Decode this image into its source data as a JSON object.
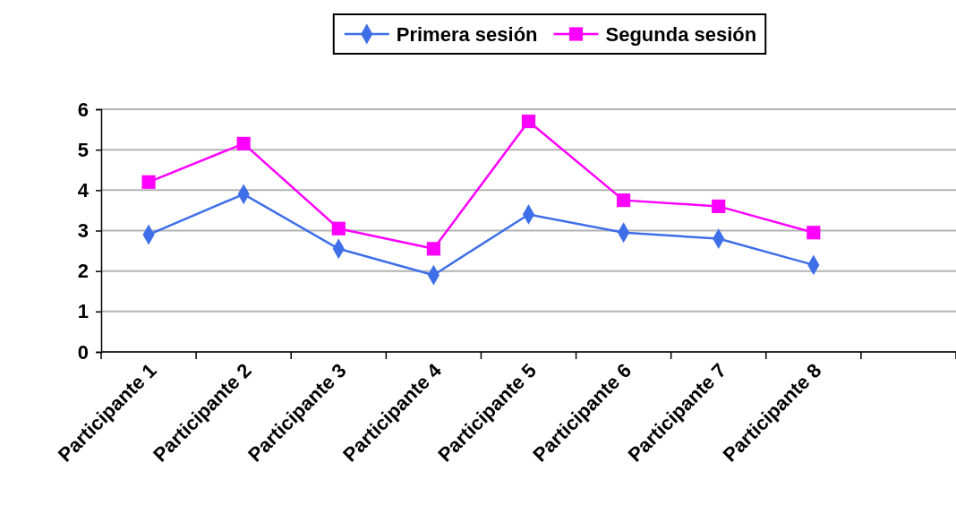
{
  "chart_data": {
    "type": "line",
    "categories": [
      "Participante 1",
      "Participante 2",
      "Participante 3",
      "Participante 4",
      "Participante 5",
      "Participante 6",
      "Participante 7",
      "Participante 8",
      null
    ],
    "series": [
      {
        "name": "Primera sesión",
        "color": "#3f6fe8",
        "marker": "diamond",
        "values": [
          2.9,
          3.9,
          2.55,
          1.9,
          3.4,
          2.95,
          2.8,
          2.15,
          null
        ]
      },
      {
        "name": "Segunda sesión",
        "color": "#ff00ff",
        "marker": "square",
        "values": [
          4.2,
          5.15,
          3.05,
          2.55,
          5.7,
          3.75,
          3.6,
          2.95,
          null
        ]
      }
    ],
    "ylim": [
      0,
      6
    ],
    "yticks": [
      0,
      1,
      2,
      3,
      4,
      5,
      6
    ],
    "grid": "y",
    "legend": "top"
  }
}
